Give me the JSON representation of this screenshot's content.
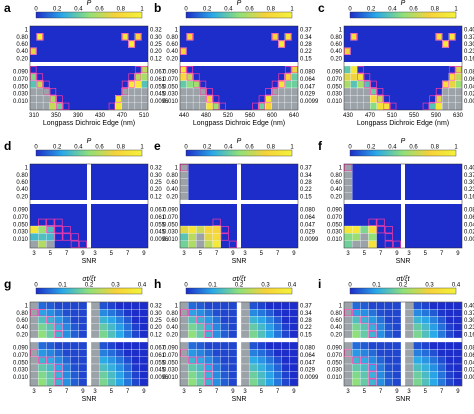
{
  "colors": {
    "background_heatmap": "#1d2dc9",
    "missing_cell": "#9ba3a9",
    "cell_border": "#ffffff",
    "highlight_border": "#ff3aa8",
    "panel_gap": "#ffffff"
  },
  "chart_data": [
    {
      "panel": "a",
      "type": "heatmap",
      "colorbar": {
        "label": "P",
        "range": [
          0,
          1
        ],
        "ticks": [
          "0",
          "0.2",
          "0.4",
          "0.6",
          "0.8",
          "1"
        ]
      },
      "xlabel": "Longpass Dichroic Edge (nm)",
      "xticks": [
        "310",
        "350",
        "390",
        "430",
        "470",
        "510"
      ],
      "left_ticks": [
        "1",
        "0.80",
        "0.60",
        "0.40",
        "0.20",
        "0.090",
        "0.070",
        "0.050",
        "0.030",
        "0.010"
      ],
      "right_ticks": [
        "0.32",
        "0.30",
        "0.25",
        "0.20",
        "0.12",
        "0.067",
        "0.061",
        "0.055",
        "0.045",
        "0.0096"
      ],
      "pattern": "valley",
      "valley_center": 0.48,
      "valley_depth": 0.75
    },
    {
      "panel": "b",
      "type": "heatmap",
      "colorbar": {
        "label": "P",
        "range": [
          0,
          1
        ],
        "ticks": [
          "0",
          "0.2",
          "0.4",
          "0.6",
          "0.8",
          "1"
        ]
      },
      "xlabel": "Longpass Dichroic Edge (nm)",
      "xticks": [
        "440",
        "480",
        "520",
        "560",
        "600",
        "640"
      ],
      "left_ticks": [
        "1",
        "0.80",
        "0.60",
        "0.40",
        "0.20",
        "0.090",
        "0.070",
        "0.050",
        "0.030",
        "0.010"
      ],
      "right_ticks": [
        "0.37",
        "0.34",
        "0.28",
        "0.22",
        "0.15",
        "0.080",
        "0.064",
        "0.047",
        "0.029",
        "0.0099"
      ],
      "pattern": "valley",
      "valley_center": 0.5,
      "valley_depth": 0.55
    },
    {
      "panel": "c",
      "type": "heatmap",
      "colorbar": {
        "label": "P",
        "range": [
          0,
          1
        ],
        "ticks": [
          "0",
          "0.2",
          "0.4",
          "0.6",
          "0.8",
          "1"
        ]
      },
      "xlabel": "Longpass Dichroic Edge (nm)",
      "xticks": [
        "430",
        "470",
        "510",
        "550",
        "590",
        "630"
      ],
      "left_ticks": [
        "1",
        "0.80",
        "0.60",
        "0.40",
        "0.20",
        "0.090",
        "0.070",
        "0.050",
        "0.030",
        "0.010"
      ],
      "right_ticks": [
        "0.40",
        "0.37",
        "0.30",
        "0.23",
        "0.16",
        "0.081",
        "0.064",
        "0.047",
        "0.029",
        "0.0097"
      ],
      "pattern": "valley",
      "valley_center": 0.55,
      "valley_depth": 0.45
    },
    {
      "panel": "d",
      "type": "heatmap",
      "colorbar": {
        "label": "P",
        "range": [
          0,
          1
        ],
        "ticks": [
          "0",
          "0.2",
          "0.4",
          "0.6",
          "0.8",
          "1"
        ]
      },
      "xlabel": "SNR",
      "xticks": [
        "3",
        "5",
        "7",
        "9",
        "3",
        "5",
        "7",
        "9"
      ],
      "left_ticks": [
        "1",
        "0.80",
        "0.60",
        "0.40",
        "0.20",
        "0.090",
        "0.070",
        "0.050",
        "0.030",
        "0.010"
      ],
      "right_ticks": [
        "0.32",
        "0.30",
        "0.25",
        "0.20",
        "0.12",
        "0.067",
        "0.061",
        "0.055",
        "0.045",
        "0.0096"
      ],
      "pattern": "snr",
      "snr_strength": 0.35
    },
    {
      "panel": "e",
      "type": "heatmap",
      "colorbar": {
        "label": "P",
        "range": [
          0,
          1
        ],
        "ticks": [
          "0",
          "0.2",
          "0.4",
          "0.6",
          "0.8",
          "1"
        ]
      },
      "xlabel": "SNR",
      "xticks": [
        "3",
        "5",
        "7",
        "9",
        "3",
        "5",
        "7",
        "9"
      ],
      "left_ticks": [
        "1",
        "0.80",
        "0.60",
        "0.40",
        "0.20",
        "0.090",
        "0.070",
        "0.050",
        "0.030",
        "0.010"
      ],
      "right_ticks": [
        "0.37",
        "0.34",
        "0.28",
        "0.22",
        "0.15",
        "0.080",
        "0.064",
        "0.047",
        "0.029",
        "0.0099"
      ],
      "pattern": "snr",
      "snr_strength": 0.75
    },
    {
      "panel": "f",
      "type": "heatmap",
      "colorbar": {
        "label": "P",
        "range": [
          0,
          1
        ],
        "ticks": [
          "0",
          "0.2",
          "0.4",
          "0.6",
          "0.8",
          "1"
        ]
      },
      "xlabel": "SNR",
      "xticks": [
        "3",
        "5",
        "7",
        "9",
        "3",
        "5",
        "7",
        "9"
      ],
      "left_ticks": [
        "1",
        "0.80",
        "0.60",
        "0.40",
        "0.20",
        "0.090",
        "0.070",
        "0.050",
        "0.030",
        "0.010"
      ],
      "right_ticks": [
        "0.40",
        "0.37",
        "0.30",
        "0.23",
        "0.16",
        "0.081",
        "0.064",
        "0.047",
        "0.029",
        "0.0097"
      ],
      "pattern": "snr",
      "snr_strength": 0.6
    },
    {
      "panel": "g",
      "type": "heatmap",
      "colorbar": {
        "label": "σt/ξt",
        "range": [
          0,
          0.4
        ],
        "ticks": [
          "0",
          "0.1",
          "0.2",
          "0.3",
          "0.4"
        ]
      },
      "xlabel": "SNR",
      "xticks": [
        "3",
        "5",
        "7",
        "9",
        "3",
        "5",
        "7",
        "9"
      ],
      "left_ticks": [
        "1",
        "0.80",
        "0.60",
        "0.40",
        "0.20",
        "0.090",
        "0.070",
        "0.050",
        "0.030",
        "0.010"
      ],
      "right_ticks": [
        "0.32",
        "0.30",
        "0.25",
        "0.20",
        "0.12",
        "0.067",
        "0.061",
        "0.055",
        "0.045",
        "0.0096"
      ],
      "pattern": "sigma"
    },
    {
      "panel": "h",
      "type": "heatmap",
      "colorbar": {
        "label": "σt/ξt",
        "range": [
          0,
          0.4
        ],
        "ticks": [
          "0",
          "0.1",
          "0.2",
          "0.3",
          "0.4"
        ]
      },
      "xlabel": "SNR",
      "xticks": [
        "3",
        "5",
        "7",
        "9",
        "3",
        "5",
        "7",
        "9"
      ],
      "left_ticks": [
        "1",
        "0.80",
        "0.60",
        "0.40",
        "0.20",
        "0.090",
        "0.070",
        "0.050",
        "0.030",
        "0.010"
      ],
      "right_ticks": [
        "0.37",
        "0.34",
        "0.28",
        "0.22",
        "0.15",
        "0.080",
        "0.064",
        "0.047",
        "0.029",
        "0.0099"
      ],
      "pattern": "sigma"
    },
    {
      "panel": "i",
      "type": "heatmap",
      "colorbar": {
        "label": "σt/ξt",
        "range": [
          0,
          0.4
        ],
        "ticks": [
          "0",
          "0.1",
          "0.2",
          "0.3",
          "0.4"
        ]
      },
      "xlabel": "SNR",
      "xticks": [
        "3",
        "5",
        "7",
        "9",
        "3",
        "5",
        "7",
        "9"
      ],
      "left_ticks": [
        "1",
        "0.80",
        "0.60",
        "0.40",
        "0.20",
        "0.090",
        "0.070",
        "0.050",
        "0.030",
        "0.010"
      ],
      "right_ticks": [
        "0.40",
        "0.37",
        "0.30",
        "0.23",
        "0.16",
        "0.081",
        "0.064",
        "0.047",
        "0.029",
        "0.0097"
      ],
      "pattern": "sigma"
    }
  ]
}
